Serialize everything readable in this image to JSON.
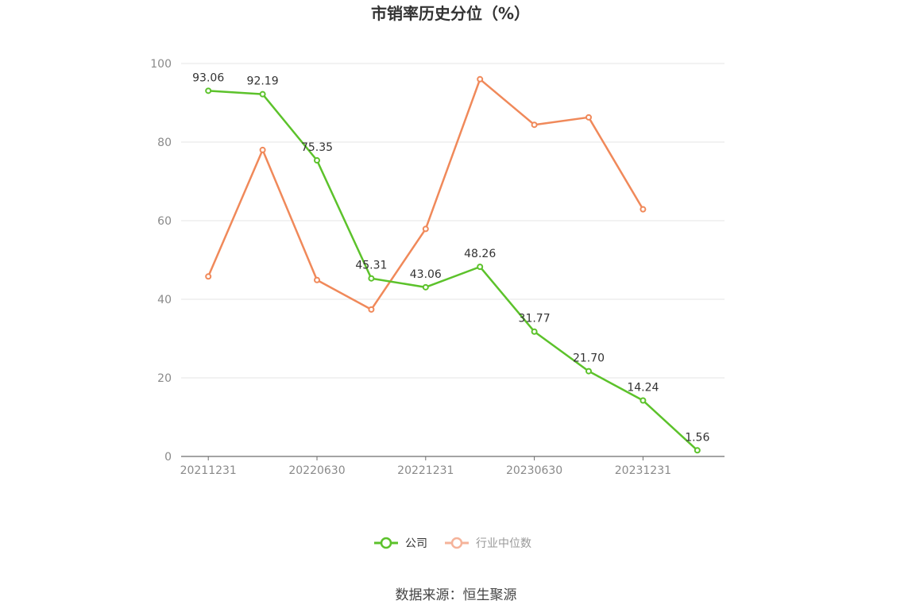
{
  "chart_data": {
    "type": "line",
    "title": "市销率历史分位（%）",
    "x": [
      "20211231",
      "20220331",
      "20220630",
      "20220930",
      "20221231",
      "20230331",
      "20230630",
      "20230930",
      "20231231",
      "20240331"
    ],
    "x_tick_labels": [
      "20211231",
      "20220630",
      "20221231",
      "20230630",
      "20231231"
    ],
    "ylim": [
      0,
      100
    ],
    "y_ticks": [
      0,
      20,
      40,
      60,
      80,
      100
    ],
    "grid": true,
    "legend_position": "bottom-center",
    "series": [
      {
        "name": "公司",
        "color": "#5cc22b",
        "values": [
          93.06,
          92.19,
          75.35,
          45.31,
          43.06,
          48.26,
          31.77,
          21.7,
          14.24,
          1.56
        ],
        "labels": [
          "93.06",
          "92.19",
          "75.35",
          "45.31",
          "43.06",
          "48.26",
          "31.77",
          "21.70",
          "14.24",
          "1.56"
        ]
      },
      {
        "name": "行业中位数",
        "color": "#f0895a",
        "values": [
          45.8,
          78.0,
          44.9,
          37.4,
          57.9,
          96.0,
          84.4,
          86.3,
          62.9,
          null
        ]
      }
    ]
  },
  "legend_colors": {
    "company": "#5cc22b",
    "industry": "#f5b39a",
    "industry_text": "#999999"
  },
  "source": "数据来源：恒生聚源"
}
